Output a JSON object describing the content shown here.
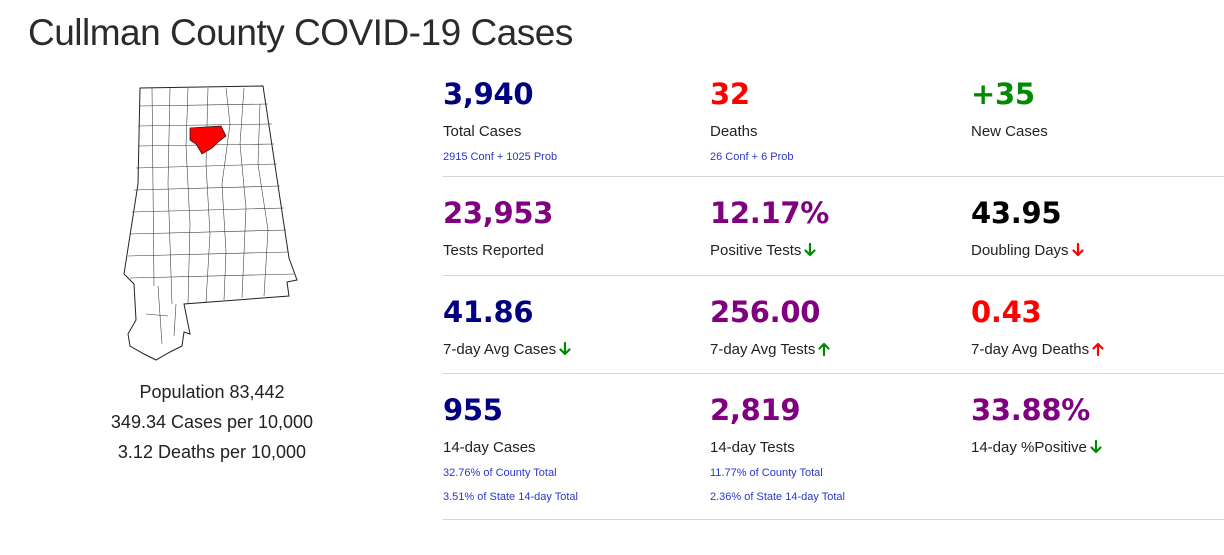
{
  "title": "Cullman County COVID-19 Cases",
  "colors": {
    "navy": "#000080",
    "red": "#ff0000",
    "green": "#008a00",
    "purple": "#800080",
    "black": "#000000",
    "link": "#2a38c8",
    "highlight": "#ff0000"
  },
  "left_stats": {
    "population": "Population 83,442",
    "cases_per_10k": "349.34 Cases per 10,000",
    "deaths_per_10k": "3.12 Deaths per 10,000"
  },
  "map": {
    "icon": "alabama-county-map",
    "highlighted": "Cullman County"
  },
  "cards": [
    [
      {
        "value": "3,940",
        "color": "navy",
        "label": "Total Cases",
        "subs": [
          "2915 Conf + 1025 Prob"
        ]
      },
      {
        "value": "32",
        "color": "red",
        "label": "Deaths",
        "subs": [
          "26 Conf + 6 Prob"
        ]
      },
      {
        "value": "+35",
        "color": "green",
        "label": "New Cases",
        "subs": []
      }
    ],
    [
      {
        "value": "23,953",
        "color": "purple",
        "label": "Tests Reported",
        "subs": []
      },
      {
        "value": "12.17%",
        "color": "purple",
        "label": "Positive Tests",
        "arrow": "down",
        "arrow_color": "green",
        "subs": []
      },
      {
        "value": "43.95",
        "color": "black",
        "label": "Doubling Days",
        "arrow": "down",
        "arrow_color": "red",
        "subs": []
      }
    ],
    [
      {
        "value": "41.86",
        "color": "navy",
        "label": "7-day Avg Cases",
        "arrow": "down",
        "arrow_color": "green",
        "subs": []
      },
      {
        "value": "256.00",
        "color": "purple",
        "label": "7-day Avg Tests",
        "arrow": "up",
        "arrow_color": "green",
        "subs": []
      },
      {
        "value": "0.43",
        "color": "red",
        "label": "7-day Avg Deaths",
        "arrow": "up",
        "arrow_color": "red",
        "subs": []
      }
    ],
    [
      {
        "value": "955",
        "color": "navy",
        "label": "14-day Cases",
        "subs": [
          "32.76% of County Total",
          "3.51% of State 14-day Total"
        ]
      },
      {
        "value": "2,819",
        "color": "purple",
        "label": "14-day Tests",
        "subs": [
          "11.77% of County Total",
          "2.36% of State 14-day Total"
        ]
      },
      {
        "value": "33.88%",
        "color": "purple",
        "label": "14-day %Positive",
        "arrow": "down",
        "arrow_color": "green",
        "subs": []
      }
    ]
  ]
}
